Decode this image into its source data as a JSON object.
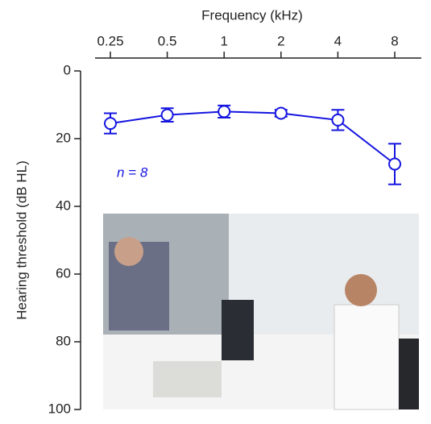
{
  "chart_data": {
    "type": "line",
    "title": "Frequency (kHz)",
    "y_label": "Hearing threshold (dB HL)",
    "annotation": "n = 8",
    "categories": [
      "0.25",
      "0.5",
      "1",
      "2",
      "4",
      "8"
    ],
    "values": [
      15.5,
      13,
      12,
      12.5,
      14.5,
      27.5
    ],
    "errors": [
      3,
      2,
      1.8,
      1,
      3,
      6
    ],
    "color": "#1515e0",
    "ylim": [
      0,
      100
    ],
    "yticks": [
      0,
      20,
      40,
      60,
      80,
      100
    ],
    "y_inverted": true,
    "grid": false
  }
}
